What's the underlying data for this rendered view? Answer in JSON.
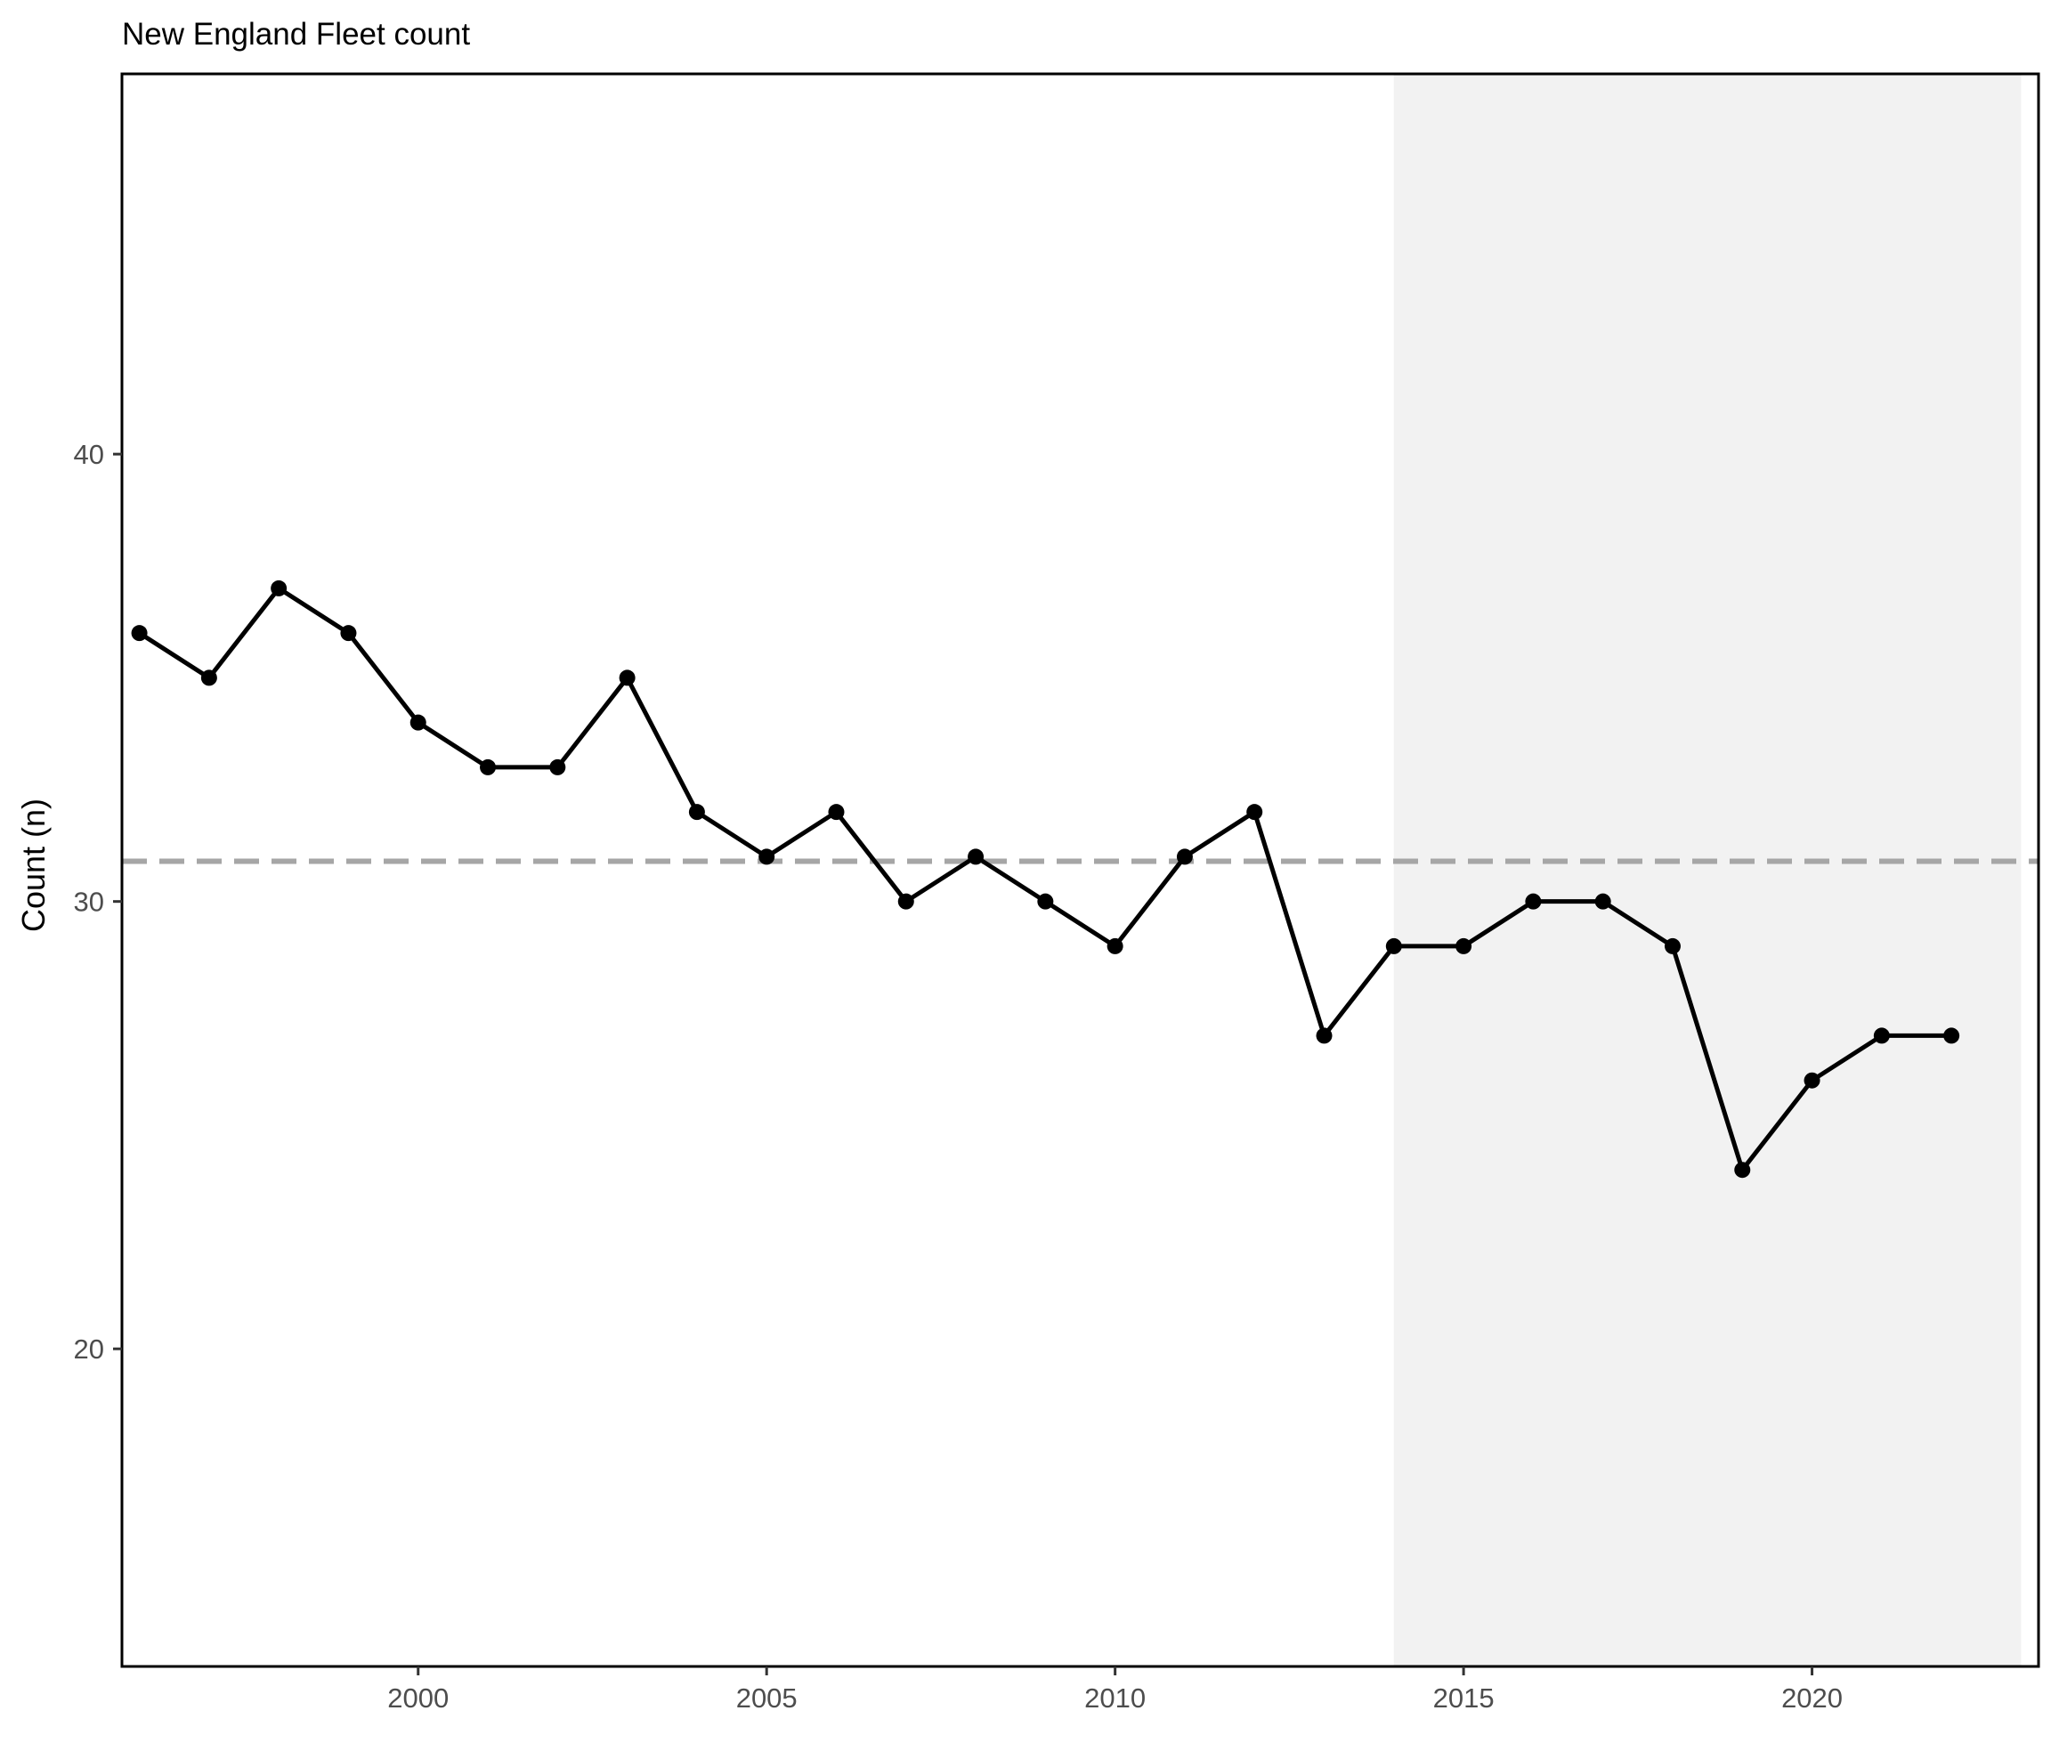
{
  "chart_data": {
    "type": "line",
    "title": "New England Fleet count",
    "xlabel": "",
    "ylabel": "Count (n)",
    "xlim": [
      1995.75,
      2023.25
    ],
    "ylim": [
      12.9,
      48.5
    ],
    "x_ticks": [
      2000,
      2005,
      2010,
      2015,
      2020
    ],
    "y_ticks": [
      20,
      30,
      40
    ],
    "grid": false,
    "legend": "none",
    "x": [
      1996,
      1997,
      1998,
      1999,
      2000,
      2001,
      2002,
      2003,
      2004,
      2005,
      2006,
      2007,
      2008,
      2009,
      2010,
      2011,
      2012,
      2013,
      2014,
      2015,
      2016,
      2017,
      2018,
      2019,
      2020,
      2021,
      2022
    ],
    "series": [
      {
        "values": [
          36,
          35,
          37,
          36,
          34,
          33,
          33,
          35,
          32,
          31,
          32,
          30,
          31,
          30,
          29,
          31,
          32,
          27,
          29,
          29,
          30,
          30,
          29,
          24,
          26,
          27,
          27
        ],
        "color": "#000000"
      }
    ],
    "reference_line": {
      "value": 30.9,
      "style": "dashed",
      "color": "#a6a6a6"
    },
    "shaded_region": {
      "x_start": 2014,
      "x_end": 2023,
      "color": "#f2f2f2"
    }
  }
}
